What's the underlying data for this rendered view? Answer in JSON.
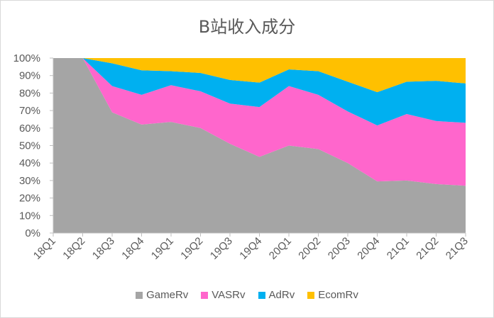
{
  "chart_data": {
    "type": "area",
    "stacked": true,
    "percent": true,
    "title": "B站收入成分",
    "categories": [
      "18Q1",
      "18Q2",
      "18Q3",
      "18Q4",
      "19Q1",
      "19Q2",
      "19Q3",
      "19Q4",
      "20Q1",
      "20Q2",
      "20Q3",
      "20Q4",
      "21Q1",
      "21Q2",
      "21Q3"
    ],
    "yticks": [
      "0%",
      "10%",
      "20%",
      "30%",
      "40%",
      "50%",
      "60%",
      "70%",
      "80%",
      "90%",
      "100%"
    ],
    "ylim": [
      0,
      100
    ],
    "grid": false,
    "legend_position": "bottom",
    "series": [
      {
        "name": "GameRv",
        "color": "#a5a5a5",
        "values": [
          100,
          100,
          69,
          62,
          63.5,
          60,
          51,
          43.5,
          50,
          48,
          40,
          29.5,
          30,
          28,
          27
        ]
      },
      {
        "name": "VASRv",
        "color": "#ff66cc",
        "values": [
          0,
          0,
          15,
          17,
          21,
          21,
          23,
          28.5,
          34,
          31,
          29.5,
          32,
          38,
          36,
          36
        ]
      },
      {
        "name": "AdRv",
        "color": "#00b0f0",
        "values": [
          0,
          0,
          13,
          14,
          8,
          10.5,
          13.5,
          14,
          9.5,
          13.5,
          17,
          19,
          18.5,
          23,
          22.5
        ]
      },
      {
        "name": "EcomRv",
        "color": "#ffc000",
        "values": [
          0,
          0,
          3,
          7,
          7.5,
          8.5,
          12.5,
          14,
          6.5,
          7.5,
          13.5,
          19.5,
          13.5,
          13,
          14.5
        ]
      }
    ]
  }
}
